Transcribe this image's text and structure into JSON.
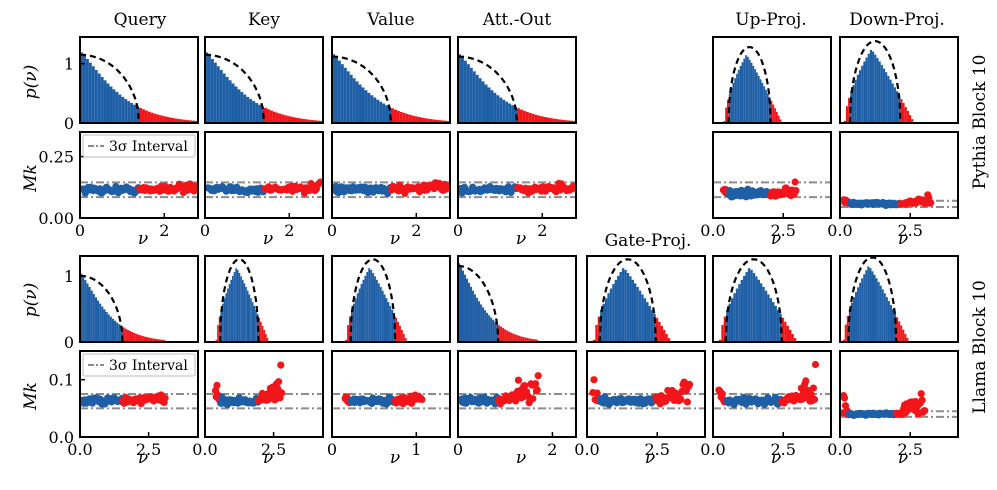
{
  "figure": {
    "panel_titles": [
      "Query",
      "Key",
      "Value",
      "Att.-Out",
      "Gate-Proj.",
      "Up-Proj.",
      "Down-Proj."
    ],
    "row_labels": [
      "Pythia Block 10",
      "Llama Block 10"
    ],
    "legend_label": "3σ Interval",
    "density_ylabel": "p(ν)",
    "moment_ylabel": "Mk",
    "xlabel": "ν"
  },
  "colors": {
    "inlier": "#1f5fa6",
    "outlier": "#f2151a",
    "fit": "#000000",
    "interval": "#8c8c8c"
  },
  "chart_data": [
    {
      "id": "pythia-query",
      "model": "Pythia Block 10",
      "type": "histogram+scatter",
      "title": "Query",
      "fit": "quarter-circle",
      "xlim": [
        0,
        2.8
      ],
      "xticks": [
        0,
        2
      ],
      "xticklabels": [
        "0",
        "2"
      ],
      "density_ylim": [
        0,
        1.45
      ],
      "density_yticks": [
        0,
        1
      ],
      "moment_ylim": [
        0,
        0.35
      ],
      "moment_yticks": [
        0,
        0.25
      ],
      "moment_yticklabels": [
        "0.00",
        "0.25"
      ],
      "fit_range": [
        0,
        1.4
      ],
      "fit_peak": 1.15,
      "inlier_max": 1.4,
      "interval_upper": 0.145,
      "interval_lower": 0.085,
      "moment_center": 0.115,
      "show_legend": true,
      "show_density_ylabel": true,
      "show_moment_ylabel": true
    },
    {
      "id": "pythia-key",
      "model": "Pythia Block 10",
      "type": "histogram+scatter",
      "title": "Key",
      "fit": "quarter-circle",
      "xlim": [
        0,
        2.8
      ],
      "xticks": [
        0,
        2
      ],
      "xticklabels": [
        "0",
        "2"
      ],
      "density_ylim": [
        0,
        1.45
      ],
      "moment_ylim": [
        0,
        0.35
      ],
      "fit_range": [
        0,
        1.4
      ],
      "fit_peak": 1.15,
      "inlier_max": 1.4,
      "interval_upper": 0.145,
      "interval_lower": 0.085,
      "moment_center": 0.115
    },
    {
      "id": "pythia-value",
      "model": "Pythia Block 10",
      "type": "histogram+scatter",
      "title": "Value",
      "fit": "quarter-circle",
      "xlim": [
        0,
        2.8
      ],
      "xticks": [
        0,
        2
      ],
      "xticklabels": [
        "0",
        "2"
      ],
      "density_ylim": [
        0,
        1.45
      ],
      "moment_ylim": [
        0,
        0.35
      ],
      "fit_range": [
        0,
        1.4
      ],
      "fit_peak": 1.12,
      "inlier_max": 1.4,
      "interval_upper": 0.145,
      "interval_lower": 0.085,
      "moment_center": 0.115
    },
    {
      "id": "pythia-attout",
      "model": "Pythia Block 10",
      "type": "histogram+scatter",
      "title": "Att.-Out",
      "fit": "quarter-circle",
      "xlim": [
        0,
        2.8
      ],
      "xticks": [
        0,
        2
      ],
      "xticklabels": [
        "0",
        "2"
      ],
      "density_ylim": [
        0,
        1.45
      ],
      "moment_ylim": [
        0,
        0.35
      ],
      "fit_range": [
        0,
        1.4
      ],
      "fit_peak": 1.12,
      "inlier_max": 1.4,
      "interval_upper": 0.145,
      "interval_lower": 0.085,
      "moment_center": 0.115
    },
    {
      "id": "pythia-upproj",
      "model": "Pythia Block 10",
      "type": "histogram+scatter",
      "title": "Up-Proj.",
      "fit": "semicircle",
      "xlim": [
        0,
        4.2
      ],
      "xticks": [
        0,
        2.5
      ],
      "xticklabels": [
        "0.0",
        "2.5"
      ],
      "density_ylim": [
        0,
        1.45
      ],
      "moment_ylim": [
        0,
        0.35
      ],
      "fit_range": [
        0.55,
        2.05
      ],
      "fit_peak": 1.28,
      "inlier_max": 2.05,
      "interval_upper": 0.145,
      "interval_lower": 0.085,
      "moment_center": 0.1
    },
    {
      "id": "pythia-downproj",
      "model": "Pythia Block 10",
      "type": "histogram+scatter",
      "title": "Down-Proj.",
      "fit": "semicircle",
      "xlim": [
        0,
        4.2
      ],
      "xticks": [
        0,
        2.5
      ],
      "xticklabels": [
        "0.0",
        "2.5"
      ],
      "density_ylim": [
        0,
        1.45
      ],
      "moment_ylim": [
        0,
        0.35
      ],
      "fit_range": [
        0.35,
        2.15
      ],
      "fit_peak": 1.38,
      "inlier_max": 2.15,
      "interval_upper": 0.07,
      "interval_lower": 0.045,
      "moment_center": 0.058
    },
    {
      "id": "llama-query",
      "model": "Llama Block 10",
      "type": "histogram+scatter",
      "title": "",
      "fit": "quarter-circle",
      "xlim": [
        0,
        4.3
      ],
      "xticks": [
        0,
        2.5
      ],
      "xticklabels": [
        "0.0",
        "2.5"
      ],
      "density_ylim": [
        0,
        1.3
      ],
      "density_yticks": [
        0,
        1
      ],
      "moment_ylim": [
        0,
        0.15
      ],
      "moment_yticks": [
        0,
        0.1
      ],
      "moment_yticklabels": [
        "0.0",
        "0.1"
      ],
      "fit_range": [
        0,
        1.55
      ],
      "fit_peak": 1.0,
      "inlier_max": 1.55,
      "interval_upper": 0.075,
      "interval_lower": 0.05,
      "moment_center": 0.063,
      "show_legend": true,
      "show_density_ylabel": true,
      "show_moment_ylabel": true
    },
    {
      "id": "llama-key",
      "model": "Llama Block 10",
      "type": "histogram+scatter",
      "title": "",
      "fit": "semicircle",
      "xlim": [
        0,
        4.3
      ],
      "xticks": [
        0,
        2.5
      ],
      "xticklabels": [
        "0.0",
        "2.5"
      ],
      "density_ylim": [
        0,
        1.3
      ],
      "moment_ylim": [
        0,
        0.15
      ],
      "fit_range": [
        0.55,
        1.95
      ],
      "fit_peak": 1.25,
      "inlier_max": 1.95,
      "interval_upper": 0.075,
      "interval_lower": 0.05,
      "moment_center": 0.063
    },
    {
      "id": "llama-value",
      "model": "Llama Block 10",
      "type": "histogram+scatter",
      "title": "",
      "fit": "semicircle",
      "xlim": [
        0,
        1.4
      ],
      "xticks": [
        0,
        1
      ],
      "xticklabels": [
        "0",
        "1"
      ],
      "density_ylim": [
        0,
        1.3
      ],
      "moment_ylim": [
        0,
        0.15
      ],
      "fit_range": [
        0.22,
        0.75
      ],
      "fit_peak": 1.25,
      "inlier_max": 0.75,
      "interval_upper": 0.075,
      "interval_lower": 0.05,
      "moment_center": 0.063
    },
    {
      "id": "llama-attout",
      "model": "Llama Block 10",
      "type": "histogram+scatter",
      "title": "",
      "fit": "quarter-circle",
      "xlim": [
        0,
        2.5
      ],
      "xticks": [
        0,
        2
      ],
      "xticklabels": [
        "0",
        "2"
      ],
      "density_ylim": [
        0,
        1.3
      ],
      "moment_ylim": [
        0,
        0.15
      ],
      "fit_range": [
        0,
        0.85
      ],
      "fit_peak": 1.15,
      "inlier_max": 0.85,
      "interval_upper": 0.075,
      "interval_lower": 0.05,
      "moment_center": 0.063
    },
    {
      "id": "llama-gateproj",
      "model": "Llama Block 10",
      "type": "histogram+scatter",
      "title": "",
      "fit": "semicircle",
      "xlim": [
        0,
        4.2
      ],
      "xticks": [
        0,
        2.5
      ],
      "xticklabels": [
        "0.0",
        "2.5"
      ],
      "density_ylim": [
        0,
        1.3
      ],
      "moment_ylim": [
        0,
        0.15
      ],
      "fit_range": [
        0.45,
        2.45
      ],
      "fit_peak": 1.25,
      "inlier_max": 2.45,
      "interval_upper": 0.075,
      "interval_lower": 0.05,
      "moment_center": 0.063
    },
    {
      "id": "llama-upproj",
      "model": "Llama Block 10",
      "type": "histogram+scatter",
      "title": "",
      "fit": "semicircle",
      "xlim": [
        0,
        4.2
      ],
      "xticks": [
        0,
        2.5
      ],
      "xticklabels": [
        "0.0",
        "2.5"
      ],
      "density_ylim": [
        0,
        1.3
      ],
      "moment_ylim": [
        0,
        0.15
      ],
      "fit_range": [
        0.45,
        2.45
      ],
      "fit_peak": 1.25,
      "inlier_max": 2.45,
      "interval_upper": 0.075,
      "interval_lower": 0.05,
      "moment_center": 0.063
    },
    {
      "id": "llama-downproj",
      "model": "Llama Block 10",
      "type": "histogram+scatter",
      "title": "",
      "fit": "semicircle",
      "xlim": [
        0,
        4.2
      ],
      "xticks": [
        0,
        2.5
      ],
      "xticklabels": [
        "0.0",
        "2.5"
      ],
      "density_ylim": [
        0,
        1.3
      ],
      "moment_ylim": [
        0,
        0.15
      ],
      "fit_range": [
        0.3,
        2.0
      ],
      "fit_peak": 1.28,
      "inlier_max": 2.0,
      "interval_upper": 0.045,
      "interval_lower": 0.035,
      "moment_center": 0.04
    }
  ]
}
